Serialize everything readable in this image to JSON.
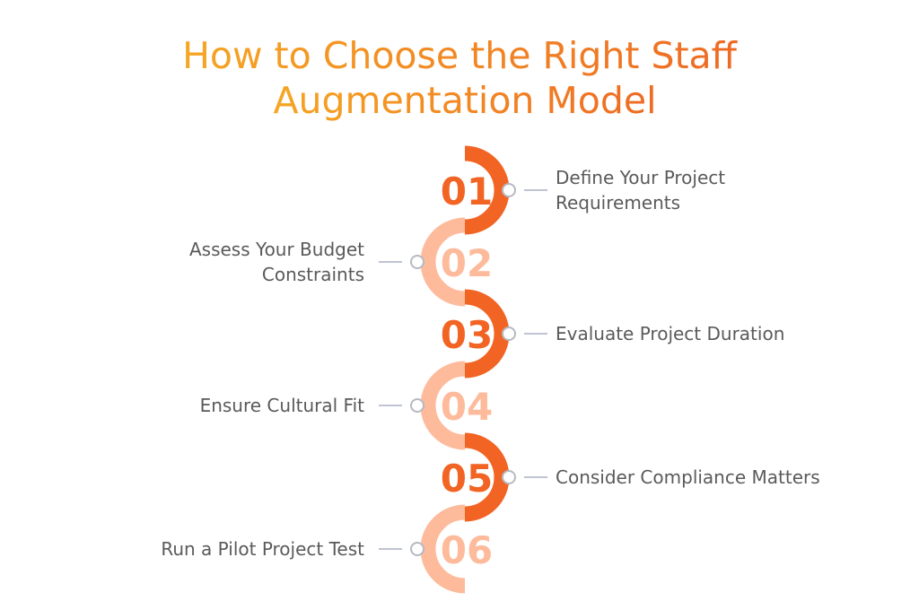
{
  "title": {
    "line1": "How to Choose the Right Staff",
    "line2": "Augmentation Model"
  },
  "colors": {
    "title_start": "#F5A623",
    "title_end": "#EE6A24",
    "dark_orange": "#F26424",
    "light_orange": "#FDBB9C",
    "connector": "#A9B1C2",
    "text": "#5A5A5A"
  },
  "steps": [
    {
      "number": "01",
      "lines": [
        "Define Your Project",
        "Requirements"
      ]
    },
    {
      "number": "02",
      "lines": [
        "Assess Your Budget",
        "Constraints"
      ]
    },
    {
      "number": "03",
      "lines": [
        "Evaluate Project Duration"
      ]
    },
    {
      "number": "04",
      "lines": [
        "Ensure Cultural Fit"
      ]
    },
    {
      "number": "05",
      "lines": [
        "Consider Compliance Matters"
      ]
    },
    {
      "number": "06",
      "lines": [
        "Run a Pilot Project Test"
      ]
    }
  ]
}
